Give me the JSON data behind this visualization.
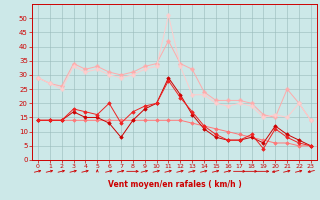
{
  "x": [
    0,
    1,
    2,
    3,
    4,
    5,
    6,
    7,
    8,
    9,
    10,
    11,
    12,
    13,
    14,
    15,
    16,
    17,
    18,
    19,
    20,
    21,
    22,
    23
  ],
  "series": [
    {
      "color": "#FF7777",
      "lw": 0.7,
      "marker": "D",
      "ms": 1.8,
      "values": [
        14,
        14,
        14,
        14,
        14,
        14,
        14,
        14,
        14,
        14,
        14,
        14,
        14,
        13,
        12,
        11,
        10,
        9,
        8,
        7,
        6,
        6,
        5,
        5
      ]
    },
    {
      "color": "#CC0000",
      "lw": 0.7,
      "marker": "D",
      "ms": 1.8,
      "values": [
        14,
        14,
        14,
        17,
        15,
        15,
        13,
        8,
        14,
        18,
        20,
        29,
        23,
        16,
        11,
        8,
        7,
        7,
        8,
        6,
        12,
        9,
        7,
        5
      ]
    },
    {
      "color": "#EE2222",
      "lw": 0.7,
      "marker": "D",
      "ms": 1.8,
      "values": [
        14,
        14,
        14,
        18,
        17,
        16,
        20,
        13,
        17,
        19,
        20,
        28,
        22,
        17,
        12,
        9,
        7,
        7,
        9,
        4,
        11,
        8,
        6,
        5
      ]
    },
    {
      "color": "#FFAAAA",
      "lw": 0.7,
      "marker": "P",
      "ms": 2.5,
      "values": [
        29,
        27,
        26,
        34,
        32,
        33,
        31,
        30,
        31,
        33,
        34,
        42,
        34,
        32,
        24,
        21,
        21,
        21,
        20,
        16,
        15,
        25,
        20,
        14
      ]
    },
    {
      "color": "#FFCCCC",
      "lw": 0.7,
      "marker": "P",
      "ms": 2.5,
      "values": [
        29,
        27,
        25,
        33,
        31,
        32,
        30,
        29,
        30,
        32,
        33,
        51,
        33,
        23,
        23,
        20,
        19,
        20,
        19,
        15,
        16,
        15,
        20,
        14
      ]
    }
  ],
  "arrow_angles_deg": [
    45,
    45,
    45,
    45,
    45,
    90,
    45,
    45,
    0,
    45,
    45,
    45,
    45,
    45,
    45,
    45,
    45,
    0,
    0,
    0,
    225,
    45,
    45,
    225
  ],
  "ylim": [
    0,
    55
  ],
  "yticks": [
    0,
    5,
    10,
    15,
    20,
    25,
    30,
    35,
    40,
    45,
    50
  ],
  "xlabel": "Vent moyen/en rafales ( km/h )",
  "bg_color": "#CCE8E8",
  "grid_color": "#99BBBB",
  "red_color": "#CC0000"
}
